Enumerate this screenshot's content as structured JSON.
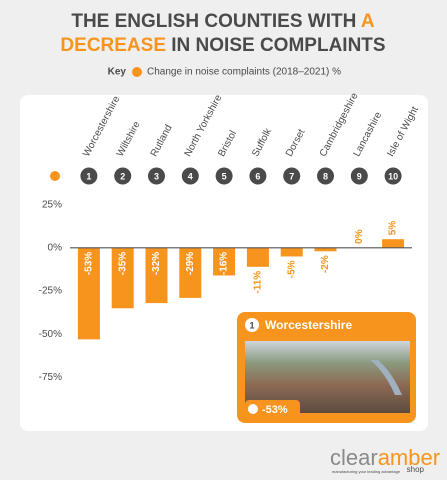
{
  "chart_data": {
    "type": "bar",
    "title": {
      "start": "THE ENGLISH COUNTIES WITH",
      "highlight_a": "A",
      "highlight_b": "DECREASE",
      "end": "IN NOISE COMPLAINTS"
    },
    "highlight_color": "#f7941d",
    "key": {
      "label": "Key",
      "text": "Change in noise complaints (2018–2021) %"
    },
    "categories": [
      "Worcestershire",
      "Wiltshire",
      "Rutland",
      "North Yorkshire",
      "Bristol",
      "Suffolk",
      "Dorset",
      "Cambridgeshire",
      "Lancashire",
      "Isle of Wight"
    ],
    "ranks": [
      1,
      2,
      3,
      4,
      5,
      6,
      7,
      8,
      9,
      10
    ],
    "values": [
      -53,
      -35,
      -32,
      -29,
      -16,
      -11,
      -5,
      -2,
      0,
      5
    ],
    "value_labels": [
      "-53%",
      "-35%",
      "-32%",
      "-29%",
      "-16%",
      "-11%",
      "-5%",
      "-2%",
      "0%",
      "5%"
    ],
    "color": "#f7941d",
    "ylim": [
      -80,
      30
    ],
    "yticks": [
      {
        "value": 25,
        "label": "25%"
      },
      {
        "value": 0,
        "label": "0%"
      },
      {
        "value": -25,
        "label": "-25%"
      },
      {
        "value": -50,
        "label": "-50%"
      },
      {
        "value": -75,
        "label": "-75%"
      }
    ],
    "grid": false
  },
  "brand": {
    "clear": "clear",
    "amber": "amber",
    "shop": "shop",
    "tagline": "manufacturing your leading advantage"
  }
}
